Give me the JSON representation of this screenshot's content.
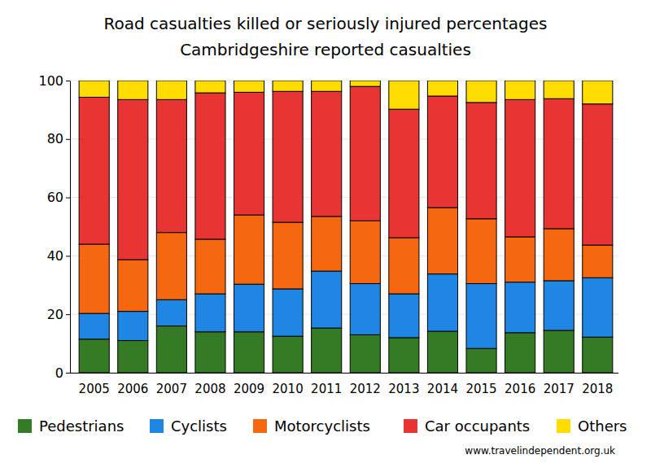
{
  "chart_data": {
    "type": "bar",
    "title": "Road casualties killed or seriously injured percentages",
    "subtitle": "Cambridgeshire reported casualties",
    "annotations": [
      "www.travelindependent.org.uk"
    ],
    "categories": [
      "2005",
      "2006",
      "2007",
      "2008",
      "2009",
      "2010",
      "2011",
      "2012",
      "2013",
      "2014",
      "2015",
      "2016",
      "2017",
      "2018"
    ],
    "series": [
      {
        "name": "Pedestrians",
        "color": "#357a24",
        "values": [
          11.5,
          11,
          16,
          14,
          14,
          12.5,
          15.3,
          13,
          12,
          14.2,
          8.3,
          13.7,
          14.5,
          12.2
        ]
      },
      {
        "name": "Cyclists",
        "color": "#2086e3",
        "values": [
          8.8,
          10,
          9,
          13,
          16.3,
          16.2,
          19.5,
          17.5,
          15,
          19.6,
          22.2,
          17.3,
          17,
          20.3
        ]
      },
      {
        "name": "Motorcyclists",
        "color": "#f5680f",
        "values": [
          23.7,
          17.7,
          23,
          18.7,
          23.7,
          22.8,
          18.7,
          21.5,
          19.2,
          22.7,
          22.2,
          15.5,
          17.8,
          11.2
        ]
      },
      {
        "name": "Car occupants",
        "color": "#e83432",
        "values": [
          50.3,
          54.8,
          45.5,
          50.1,
          42,
          44.8,
          42.8,
          46,
          44,
          38.2,
          39.8,
          47,
          44.5,
          48.3
        ]
      },
      {
        "name": "Others",
        "color": "#ffdd00",
        "values": [
          5.7,
          6.5,
          6.5,
          4.2,
          4,
          3.7,
          3.7,
          2,
          9.8,
          5.3,
          7.5,
          6.5,
          6.2,
          8
        ]
      }
    ],
    "ylim": [
      0,
      100
    ],
    "yticks": [
      0,
      20,
      40,
      60,
      80,
      100
    ],
    "grid": true,
    "stacked": true,
    "legend": "bottom"
  }
}
